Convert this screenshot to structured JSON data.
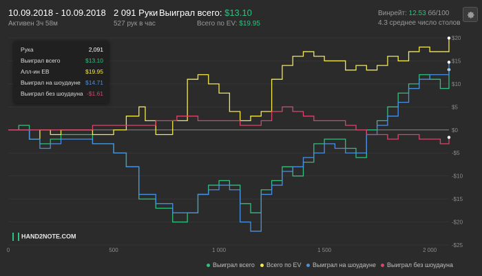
{
  "header": {
    "date_range": "10.09.2018 - 10.09.2018",
    "active": "Активен 3ч 58м",
    "hands_title": "2 091 Руки",
    "hands_rate": "527 рук в час",
    "won_label": "Выиграл всего:",
    "won_value": "$13.10",
    "ev_label": "Всего по EV:",
    "ev_value": "$19.95",
    "winrate_label": "Винрейт:",
    "winrate_value": "12.53",
    "winrate_unit": "бб/100",
    "tables": "4.3 среднее число столов",
    "settings_icon": "gear-icon"
  },
  "tooltip": {
    "rows": [
      {
        "label": "Рука",
        "value": "2,091",
        "color": "#ffffff"
      },
      {
        "label": "Выиграл всего",
        "value": "$13.10",
        "color": "#2ec27e"
      },
      {
        "label": "Алл-ин EB",
        "value": "$19.95",
        "color": "#f5e94c"
      },
      {
        "label": "Выиграл на шоудауне",
        "value": "$14.71",
        "color": "#4a90e2"
      },
      {
        "label": "Выиграл без шоудауна",
        "value": "-$1.61",
        "color": "#d9456b"
      }
    ]
  },
  "logo": "HAND2NOTE.COM",
  "chart_data": {
    "type": "line",
    "xlim": [
      0,
      2091
    ],
    "ylim": [
      -25,
      20
    ],
    "x_ticks": [
      0,
      500,
      1000,
      1500,
      2000
    ],
    "x_tick_labels": [
      "0",
      "500",
      "1 000",
      "1 500",
      "2 000"
    ],
    "y_ticks": [
      20,
      15,
      10,
      5,
      0,
      -5,
      -10,
      -15,
      -20,
      -25
    ],
    "y_tick_labels": [
      "$20",
      "$15",
      "$10",
      "$5",
      "$0",
      "-$5",
      "-$10",
      "-$15",
      "-$20",
      "-$25"
    ],
    "grid": true,
    "legend": "bottom-right",
    "series": [
      {
        "name": "Выиграл всего",
        "color": "#2ec27e",
        "x": [
          0,
          50,
          100,
          150,
          200,
          250,
          300,
          400,
          500,
          560,
          620,
          700,
          780,
          850,
          900,
          950,
          1000,
          1050,
          1100,
          1150,
          1200,
          1250,
          1300,
          1350,
          1400,
          1450,
          1500,
          1550,
          1600,
          1650,
          1700,
          1750,
          1800,
          1850,
          1900,
          1950,
          2000,
          2050,
          2091
        ],
        "y": [
          0,
          1,
          -2,
          -3,
          -2,
          -1,
          -1,
          -3,
          -5,
          -8,
          -15,
          -17,
          -20,
          -18,
          -14,
          -12,
          -11,
          -12,
          -16,
          -18,
          -13,
          -11,
          -8,
          -10,
          -7,
          -3,
          -2,
          -2,
          -4,
          -6,
          0,
          2,
          5,
          8,
          10,
          12,
          11,
          9,
          13.1
        ]
      },
      {
        "name": "Всего по EV",
        "color": "#f5e94c",
        "x": [
          0,
          50,
          100,
          150,
          200,
          250,
          300,
          400,
          500,
          560,
          620,
          650,
          700,
          780,
          850,
          900,
          950,
          1000,
          1050,
          1100,
          1150,
          1200,
          1250,
          1300,
          1350,
          1400,
          1450,
          1500,
          1550,
          1600,
          1650,
          1700,
          1750,
          1800,
          1850,
          1900,
          1950,
          2000,
          2050,
          2091
        ],
        "y": [
          0,
          0,
          -2,
          0,
          -1,
          0,
          0,
          -1,
          0,
          3,
          5,
          2,
          -1,
          2,
          11,
          12,
          10,
          8,
          4,
          2,
          3,
          4,
          11,
          14,
          16,
          17,
          16,
          15,
          15,
          13,
          14,
          13,
          14,
          16,
          15,
          17,
          18,
          17,
          17,
          19.95
        ]
      },
      {
        "name": "Выиграл на шоудауне",
        "color": "#4a90e2",
        "x": [
          0,
          50,
          100,
          150,
          200,
          250,
          300,
          400,
          500,
          560,
          620,
          700,
          780,
          850,
          900,
          950,
          1000,
          1050,
          1100,
          1150,
          1200,
          1250,
          1300,
          1350,
          1400,
          1450,
          1500,
          1550,
          1600,
          1650,
          1700,
          1750,
          1800,
          1850,
          1900,
          1950,
          2000,
          2050,
          2091
        ],
        "y": [
          0,
          0,
          -2,
          -4,
          -3,
          -2,
          -2,
          -3,
          -5,
          -8,
          -14,
          -16,
          -18,
          -18,
          -14,
          -13,
          -12,
          -13,
          -20,
          -22,
          -14,
          -12,
          -9,
          -8,
          -6,
          -5,
          -3,
          -4,
          -5,
          -5,
          -1,
          1,
          3,
          6,
          9,
          11,
          12,
          12,
          14.71
        ]
      },
      {
        "name": "Выиграл без шоудауна",
        "color": "#d9456b",
        "x": [
          0,
          100,
          200,
          300,
          400,
          500,
          600,
          700,
          800,
          900,
          1000,
          1100,
          1200,
          1250,
          1300,
          1350,
          1400,
          1450,
          1500,
          1550,
          1600,
          1650,
          1700,
          1750,
          1800,
          1850,
          1900,
          1950,
          2000,
          2050,
          2091
        ],
        "y": [
          0,
          0,
          0,
          0,
          1,
          1,
          1,
          2,
          3,
          2,
          2,
          1,
          2,
          4,
          5,
          4,
          3,
          2,
          2,
          2,
          1,
          0,
          -1,
          -1,
          -2,
          -1,
          -1,
          -2,
          -2,
          -3,
          -1.61
        ]
      }
    ]
  }
}
